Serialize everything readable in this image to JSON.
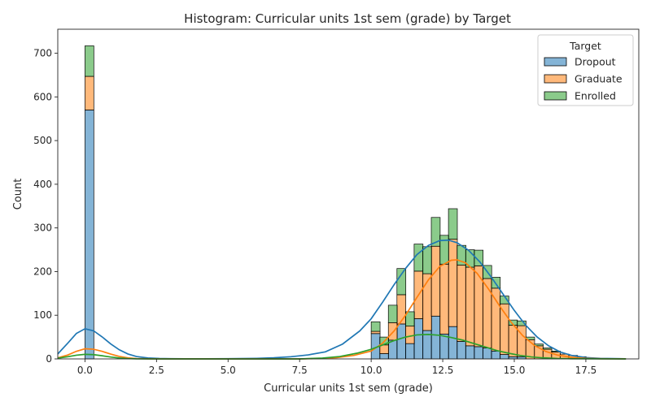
{
  "chart_data": {
    "type": "bar",
    "subtype": "stacked histogram with KDE",
    "title": "Histogram: Curricular units 1st sem (grade) by Target",
    "xlabel": "Curricular units 1st sem (grade)",
    "ylabel": "Count",
    "xlim": [
      -0.95,
      19.35
    ],
    "ylim": [
      0,
      755
    ],
    "xticks": [
      0.0,
      2.5,
      5.0,
      7.5,
      10.0,
      12.5,
      15.0,
      17.5
    ],
    "xtick_labels": [
      "0.0",
      "2.5",
      "5.0",
      "7.5",
      "10.0",
      "12.5",
      "15.0",
      "17.5"
    ],
    "yticks": [
      0,
      100,
      200,
      300,
      400,
      500,
      600,
      700
    ],
    "ytick_labels": [
      "0",
      "100",
      "200",
      "300",
      "400",
      "500",
      "600",
      "700"
    ],
    "grid": false,
    "legend": {
      "title": "Target",
      "position": "top-right"
    },
    "bin_width": 0.31,
    "series": [
      {
        "name": "Dropout",
        "color": "#1f77b4",
        "bins": [
          [
            0.0,
            570
          ],
          [
            10.0,
            58
          ],
          [
            10.3,
            12
          ],
          [
            10.6,
            43
          ],
          [
            10.9,
            80
          ],
          [
            11.2,
            35
          ],
          [
            11.5,
            92
          ],
          [
            11.8,
            65
          ],
          [
            12.1,
            98
          ],
          [
            12.4,
            57
          ],
          [
            12.7,
            74
          ],
          [
            13.0,
            40
          ],
          [
            13.3,
            30
          ],
          [
            13.6,
            28
          ],
          [
            13.9,
            25
          ],
          [
            14.2,
            18
          ],
          [
            14.5,
            10
          ],
          [
            14.8,
            5
          ],
          [
            15.1,
            5
          ]
        ],
        "kde": [
          [
            -0.95,
            11.4
          ],
          [
            -0.6,
            36.2
          ],
          [
            -0.3,
            58.3
          ],
          [
            0.0,
            69.0
          ],
          [
            0.3,
            64.4
          ],
          [
            0.6,
            50.4
          ],
          [
            0.9,
            34.3
          ],
          [
            1.2,
            20.8
          ],
          [
            1.5,
            11.3
          ],
          [
            1.8,
            5.5
          ],
          [
            2.2,
            2.1
          ],
          [
            2.6,
            0.9
          ],
          [
            3.0,
            0.4
          ],
          [
            4.0,
            0.1
          ],
          [
            5.0,
            0.4
          ],
          [
            6.0,
            1.2
          ],
          [
            6.6,
            2.5
          ],
          [
            7.2,
            5.0
          ],
          [
            7.8,
            9.2
          ],
          [
            8.4,
            16.2
          ],
          [
            9.0,
            34
          ],
          [
            9.6,
            64
          ],
          [
            10.0,
            92
          ],
          [
            10.4,
            130
          ],
          [
            10.8,
            170
          ],
          [
            11.2,
            207
          ],
          [
            11.6,
            239
          ],
          [
            12.0,
            260
          ],
          [
            12.4,
            271
          ],
          [
            12.7,
            272
          ],
          [
            13.0,
            266
          ],
          [
            13.4,
            249
          ],
          [
            13.8,
            222
          ],
          [
            14.2,
            187
          ],
          [
            14.6,
            149
          ],
          [
            15.0,
            111
          ],
          [
            15.4,
            77
          ],
          [
            15.8,
            50
          ],
          [
            16.2,
            30
          ],
          [
            16.6,
            16
          ],
          [
            17.0,
            8
          ],
          [
            17.5,
            3
          ],
          [
            18.0,
            1.2
          ],
          [
            18.9,
            0.2
          ]
        ]
      },
      {
        "name": "Graduate",
        "color": "#ff7f0e",
        "bins": [
          [
            0.0,
            77
          ],
          [
            10.0,
            5
          ],
          [
            10.3,
            20
          ],
          [
            10.6,
            40
          ],
          [
            10.9,
            67
          ],
          [
            11.2,
            40
          ],
          [
            11.5,
            109
          ],
          [
            11.8,
            130
          ],
          [
            12.1,
            160
          ],
          [
            12.4,
            160
          ],
          [
            12.7,
            200
          ],
          [
            13.0,
            175
          ],
          [
            13.3,
            180
          ],
          [
            13.6,
            185
          ],
          [
            13.9,
            159
          ],
          [
            14.2,
            144
          ],
          [
            14.5,
            116
          ],
          [
            14.8,
            72
          ],
          [
            15.1,
            71
          ],
          [
            15.4,
            44
          ],
          [
            15.7,
            30
          ],
          [
            16.0,
            22
          ],
          [
            16.3,
            16
          ],
          [
            16.6,
            11
          ],
          [
            16.9,
            8
          ],
          [
            17.2,
            5
          ]
        ],
        "kde": [
          [
            -0.95,
            2.5
          ],
          [
            -0.6,
            8.9
          ],
          [
            -0.3,
            17.4
          ],
          [
            0.0,
            23.2
          ],
          [
            0.3,
            22.2
          ],
          [
            0.6,
            17.3
          ],
          [
            0.9,
            11.0
          ],
          [
            1.2,
            5.7
          ],
          [
            1.5,
            2.4
          ],
          [
            1.8,
            0.8
          ],
          [
            2.2,
            0.2
          ],
          [
            3.0,
            0.0
          ],
          [
            7.5,
            0.0
          ],
          [
            8.2,
            1.0
          ],
          [
            8.8,
            3.0
          ],
          [
            9.4,
            8.0
          ],
          [
            10.0,
            18.0
          ],
          [
            10.4,
            36
          ],
          [
            10.8,
            64
          ],
          [
            11.2,
            100
          ],
          [
            11.6,
            141
          ],
          [
            12.0,
            181
          ],
          [
            12.4,
            212
          ],
          [
            12.8,
            226
          ],
          [
            13.0,
            227
          ],
          [
            13.3,
            220
          ],
          [
            13.7,
            196
          ],
          [
            14.1,
            160
          ],
          [
            14.5,
            120
          ],
          [
            14.9,
            83
          ],
          [
            15.3,
            53
          ],
          [
            15.7,
            31
          ],
          [
            16.1,
            17
          ],
          [
            16.5,
            9
          ],
          [
            17.0,
            3.5
          ],
          [
            17.5,
            1.3
          ],
          [
            18.0,
            0.4
          ],
          [
            18.9,
            0.1
          ]
        ]
      },
      {
        "name": "Enrolled",
        "color": "#2ca02c",
        "bins": [
          [
            0.0,
            70
          ],
          [
            10.0,
            22
          ],
          [
            10.3,
            18
          ],
          [
            10.6,
            40
          ],
          [
            10.9,
            60
          ],
          [
            11.2,
            33
          ],
          [
            11.5,
            62
          ],
          [
            11.8,
            62
          ],
          [
            12.1,
            66
          ],
          [
            12.4,
            66
          ],
          [
            12.7,
            70
          ],
          [
            13.0,
            45
          ],
          [
            13.3,
            40
          ],
          [
            13.6,
            36
          ],
          [
            13.9,
            30
          ],
          [
            14.2,
            25
          ],
          [
            14.5,
            18
          ],
          [
            14.8,
            12
          ],
          [
            15.1,
            11
          ],
          [
            15.4,
            6
          ],
          [
            15.7,
            4
          ],
          [
            16.0,
            3
          ],
          [
            16.3,
            2
          ]
        ],
        "kde": [
          [
            -0.95,
            1.8
          ],
          [
            -0.6,
            5.0
          ],
          [
            -0.3,
            8.5
          ],
          [
            0.0,
            10.5
          ],
          [
            0.3,
            9.8
          ],
          [
            0.6,
            7.2
          ],
          [
            0.9,
            4.3
          ],
          [
            1.2,
            2.1
          ],
          [
            1.5,
            0.8
          ],
          [
            1.8,
            0.2
          ],
          [
            2.5,
            0.0
          ],
          [
            7.5,
            0.0
          ],
          [
            8.3,
            2.0
          ],
          [
            8.9,
            5.5
          ],
          [
            9.5,
            13
          ],
          [
            10.0,
            22
          ],
          [
            10.4,
            32
          ],
          [
            10.8,
            42
          ],
          [
            11.2,
            50
          ],
          [
            11.6,
            55
          ],
          [
            12.0,
            56
          ],
          [
            12.4,
            54
          ],
          [
            12.8,
            49
          ],
          [
            13.2,
            43
          ],
          [
            13.6,
            35
          ],
          [
            14.0,
            27
          ],
          [
            14.4,
            19
          ],
          [
            14.8,
            13
          ],
          [
            15.2,
            8
          ],
          [
            15.6,
            4.5
          ],
          [
            16.0,
            2.5
          ],
          [
            16.5,
            1.0
          ],
          [
            17.0,
            0.4
          ],
          [
            18.9,
            0.0
          ]
        ]
      }
    ]
  }
}
